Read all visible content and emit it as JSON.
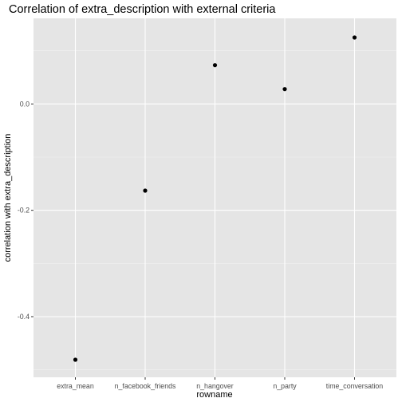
{
  "chart_data": {
    "type": "scatter",
    "title": "Correlation of extra_description with external criteria",
    "xlabel": "rowname",
    "ylabel": "correlation with extra_description",
    "categories": [
      "extra_mean",
      "n_facebook_friends",
      "n_hangover",
      "n_party",
      "time_conversation"
    ],
    "values": [
      -0.481,
      -0.163,
      0.073,
      0.028,
      0.125
    ],
    "y_ticks": [
      -0.4,
      -0.2,
      0.0
    ],
    "y_tick_labels": [
      "-0.4",
      "-0.2",
      "0.0"
    ],
    "ylim": [
      -0.514,
      0.161
    ],
    "grid": true,
    "legend": "none",
    "colors": {
      "panel_background": "#e5e5e5",
      "grid_major": "#ffffff",
      "grid_minor": "#f2f2f2",
      "point": "#000000"
    }
  }
}
